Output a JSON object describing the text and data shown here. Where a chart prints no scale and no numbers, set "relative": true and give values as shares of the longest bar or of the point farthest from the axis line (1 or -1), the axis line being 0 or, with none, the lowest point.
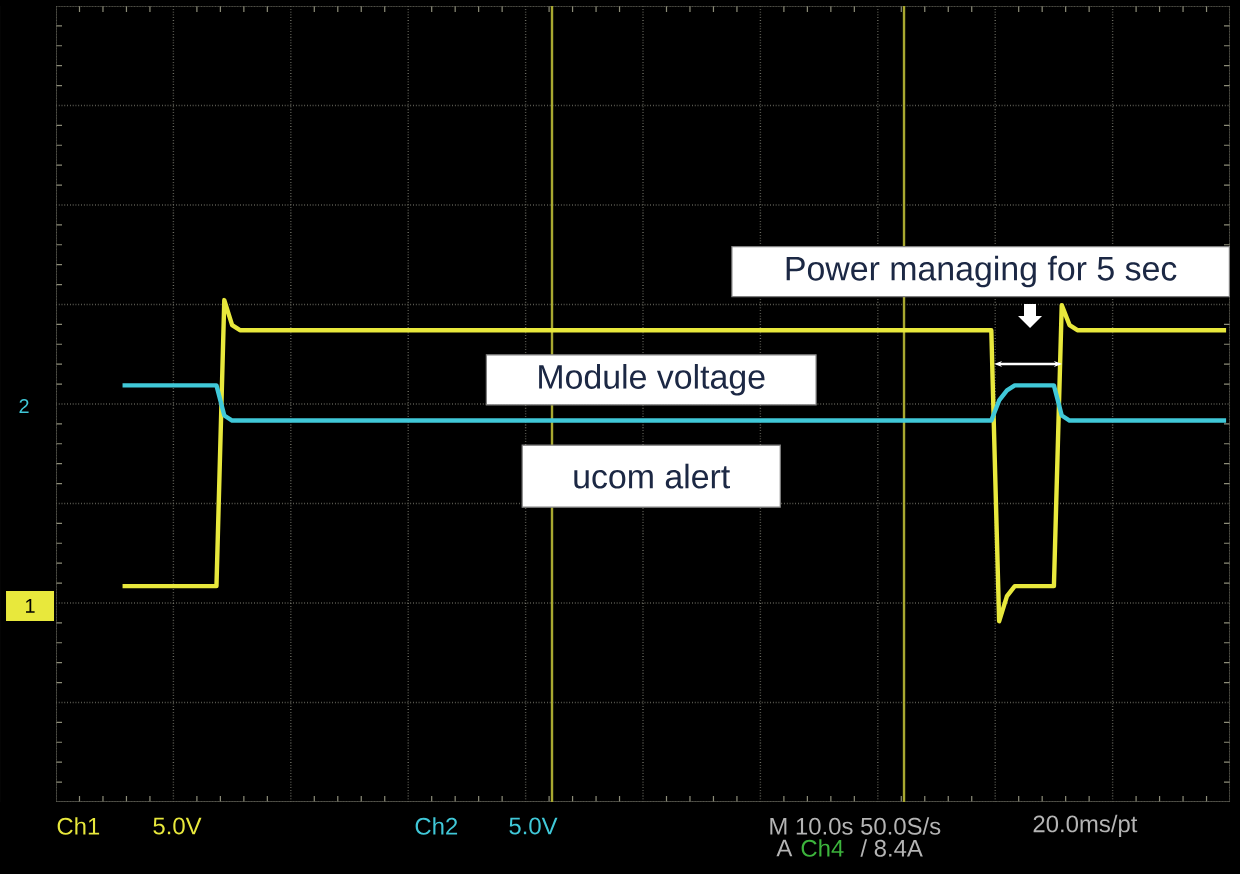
{
  "chart_data": {
    "type": "line",
    "relative": true,
    "grid": true,
    "categories": [
      null,
      null,
      null,
      null,
      null,
      null,
      null,
      null,
      null,
      null,
      null,
      null,
      null,
      null,
      null,
      null,
      null,
      null,
      null,
      null,
      null,
      null,
      null,
      null,
      null,
      null,
      null,
      null,
      null,
      null,
      null,
      null,
      null,
      null,
      null,
      null,
      null,
      null,
      null,
      null,
      null,
      null,
      null,
      null,
      null,
      null,
      null,
      null,
      null,
      null,
      null,
      null,
      null,
      null,
      null,
      null,
      null,
      null,
      null,
      null,
      null,
      null,
      null,
      null,
      null,
      null,
      null,
      null,
      null,
      null,
      null,
      null,
      null,
      null,
      null,
      null,
      null,
      null,
      null,
      null,
      null,
      null,
      null,
      null,
      null,
      null,
      null,
      null,
      null,
      null,
      null,
      null,
      null,
      null,
      null,
      null,
      null,
      null,
      null,
      null,
      null,
      null,
      null,
      null,
      null,
      null,
      null,
      null,
      null,
      null,
      null,
      null,
      null,
      null,
      null,
      null,
      null,
      null,
      null,
      null,
      null,
      null,
      null,
      null,
      null,
      null,
      null,
      null,
      null,
      null,
      null,
      null,
      null,
      null,
      null,
      null,
      null,
      null,
      null,
      null,
      null,
      null,
      null,
      null,
      null,
      null,
      null,
      null,
      null,
      null
    ],
    "series": [
      {
        "name": "Module voltage",
        "color": "#e8e83c",
        "values": [
          null,
          null,
          null,
          null,
          null,
          null,
          null,
          null,
          0.43,
          0.43,
          0.43,
          0.43,
          0.43,
          0.43,
          0.43,
          0.43,
          0.43,
          0.43,
          0.43,
          0.43,
          0.43,
          1,
          0.95,
          0.94,
          0.94,
          0.94,
          0.94,
          0.94,
          0.94,
          0.94,
          0.94,
          0.94,
          0.94,
          0.94,
          0.94,
          0.94,
          0.94,
          0.94,
          0.94,
          0.94,
          0.94,
          0.94,
          0.94,
          0.94,
          0.94,
          0.94,
          0.94,
          0.94,
          0.94,
          0.94,
          0.94,
          0.94,
          0.94,
          0.94,
          0.94,
          0.94,
          0.94,
          0.94,
          0.94,
          0.94,
          0.94,
          0.94,
          0.94,
          0.94,
          0.94,
          0.94,
          0.94,
          0.94,
          0.94,
          0.94,
          0.94,
          0.94,
          0.94,
          0.94,
          0.94,
          0.94,
          0.94,
          0.94,
          0.94,
          0.94,
          0.94,
          0.94,
          0.94,
          0.94,
          0.94,
          0.94,
          0.94,
          0.94,
          0.94,
          0.94,
          0.94,
          0.94,
          0.94,
          0.94,
          0.94,
          0.94,
          0.94,
          0.94,
          0.94,
          0.94,
          0.94,
          0.94,
          0.94,
          0.94,
          0.94,
          0.94,
          0.94,
          0.94,
          0.94,
          0.94,
          0.94,
          0.94,
          0.94,
          0.94,
          0.94,
          0.94,
          0.94,
          0.94,
          0.94,
          0.94,
          0.36,
          0.41,
          0.43,
          0.43,
          0.43,
          0.43,
          0.43,
          0.43,
          0.99,
          0.95,
          0.94,
          0.94,
          0.94,
          0.94,
          0.94,
          0.94,
          0.94,
          0.94,
          0.94,
          0.94,
          0.94,
          0.94,
          0.94,
          0.94,
          0.94,
          0.94,
          0.94,
          0.94,
          0.94,
          0.94
        ]
      },
      {
        "name": "ucom alert",
        "color": "#40c8d8",
        "values": [
          null,
          null,
          null,
          null,
          null,
          null,
          null,
          null,
          0.83,
          0.83,
          0.83,
          0.83,
          0.83,
          0.83,
          0.83,
          0.83,
          0.83,
          0.83,
          0.83,
          0.83,
          0.83,
          0.77,
          0.76,
          0.76,
          0.76,
          0.76,
          0.76,
          0.76,
          0.76,
          0.76,
          0.76,
          0.76,
          0.76,
          0.76,
          0.76,
          0.76,
          0.76,
          0.76,
          0.76,
          0.76,
          0.76,
          0.76,
          0.76,
          0.76,
          0.76,
          0.76,
          0.76,
          0.76,
          0.76,
          0.76,
          0.76,
          0.76,
          0.76,
          0.76,
          0.76,
          0.76,
          0.76,
          0.76,
          0.76,
          0.76,
          0.76,
          0.76,
          0.76,
          0.76,
          0.76,
          0.76,
          0.76,
          0.76,
          0.76,
          0.76,
          0.76,
          0.76,
          0.76,
          0.76,
          0.76,
          0.76,
          0.76,
          0.76,
          0.76,
          0.76,
          0.76,
          0.76,
          0.76,
          0.76,
          0.76,
          0.76,
          0.76,
          0.76,
          0.76,
          0.76,
          0.76,
          0.76,
          0.76,
          0.76,
          0.76,
          0.76,
          0.76,
          0.76,
          0.76,
          0.76,
          0.76,
          0.76,
          0.76,
          0.76,
          0.76,
          0.76,
          0.76,
          0.76,
          0.76,
          0.76,
          0.76,
          0.76,
          0.76,
          0.76,
          0.76,
          0.76,
          0.76,
          0.76,
          0.76,
          0.76,
          0.8,
          0.82,
          0.83,
          0.83,
          0.83,
          0.83,
          0.83,
          0.83,
          0.77,
          0.76,
          0.76,
          0.76,
          0.76,
          0.76,
          0.76,
          0.76,
          0.76,
          0.76,
          0.76,
          0.76,
          0.76,
          0.76,
          0.76,
          0.76,
          0.76,
          0.76,
          0.76,
          0.76,
          0.76,
          0.76
        ]
      }
    ],
    "annotations": [
      "Power managing for 5 sec",
      "2",
      "1",
      "Ch1",
      "5.0V",
      "Ch2",
      "5.0V",
      "M 10.0s 50.0S/s",
      "20.0ms/pt",
      "A",
      "Ch4",
      "/ 8.4A"
    ]
  }
}
